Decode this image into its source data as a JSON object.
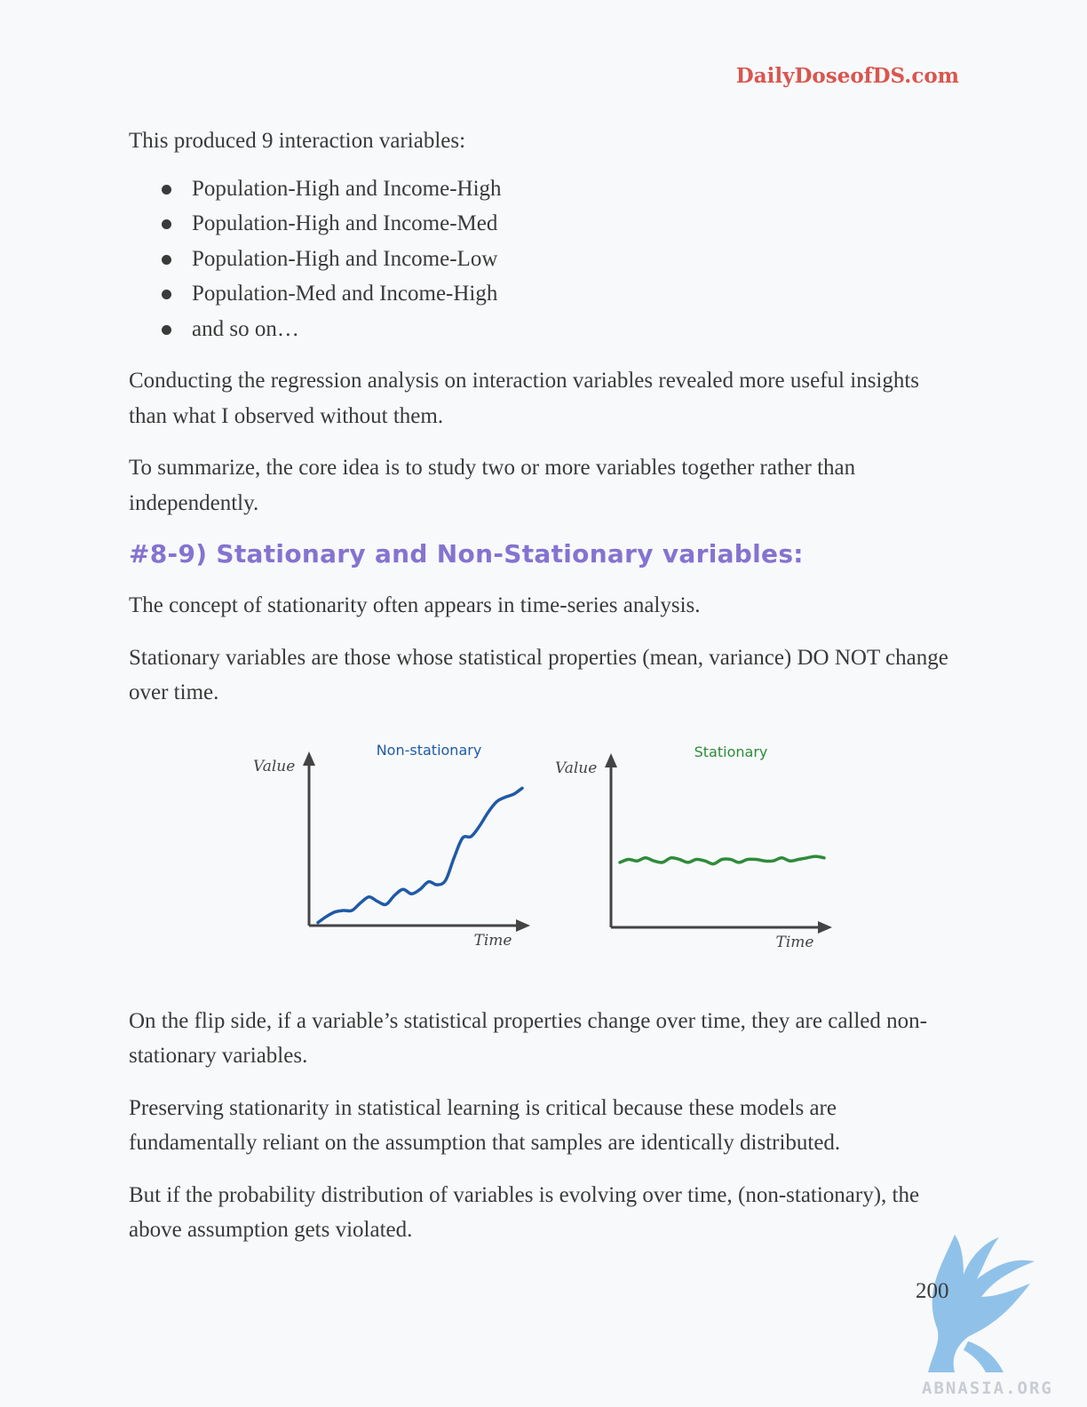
{
  "header": {
    "brand": "DailyDoseofDS.com"
  },
  "intro": "This produced 9 interaction variables:",
  "bullets": [
    "Population-High and Income-High",
    "Population-High and Income-Med",
    "Population-High and Income-Low",
    "Population-Med and Income-High",
    "and so on…"
  ],
  "paragraphs": [
    "Conducting the regression analysis on interaction variables revealed more useful insights than what I observed without them.",
    "To summarize, the core idea is to study two or more variables together rather than independently."
  ],
  "section_heading": "#8-9) Stationary and Non-Stationary variables:",
  "section_paragraphs": [
    "The concept of stationarity often appears in time-series analysis.",
    "Stationary variables are those whose statistical properties (mean, variance) DO NOT change over time."
  ],
  "chart_data": [
    {
      "type": "line",
      "title": "Non-stationary",
      "xlabel": "Time",
      "ylabel": "Value",
      "x": [
        0,
        1,
        2,
        3,
        4,
        5,
        6,
        7,
        8,
        9,
        10,
        11,
        12,
        13,
        14,
        15,
        16,
        17,
        18,
        19,
        20,
        21,
        22,
        23,
        24
      ],
      "series": [
        {
          "values": [
            0.02,
            0.06,
            0.09,
            0.1,
            0.1,
            0.15,
            0.19,
            0.16,
            0.14,
            0.2,
            0.24,
            0.21,
            0.24,
            0.29,
            0.27,
            0.3,
            0.45,
            0.58,
            0.59,
            0.66,
            0.75,
            0.82,
            0.85,
            0.87,
            0.91
          ]
        }
      ],
      "color": "#1f5aa6"
    },
    {
      "type": "line",
      "title": "Stationary",
      "xlabel": "Time",
      "ylabel": "Value",
      "x": [
        0,
        1,
        2,
        3,
        4,
        5,
        6,
        7,
        8,
        9,
        10,
        11,
        12,
        13,
        14,
        15,
        16,
        17,
        18,
        19,
        20,
        21,
        22,
        23,
        24
      ],
      "series": [
        {
          "values": [
            0.43,
            0.45,
            0.44,
            0.46,
            0.44,
            0.43,
            0.46,
            0.45,
            0.43,
            0.45,
            0.44,
            0.42,
            0.45,
            0.45,
            0.43,
            0.45,
            0.45,
            0.44,
            0.44,
            0.46,
            0.44,
            0.45,
            0.46,
            0.47,
            0.46
          ]
        }
      ],
      "color": "#2e8b3a"
    }
  ],
  "after_paragraphs": [
    "On the flip side, if a variable’s statistical properties change over time, they are called non-stationary variables.",
    "Preserving stationarity in statistical learning is critical because these models are fundamentally reliant on the assumption that samples are identically distributed.",
    "But if the probability distribution of variables is evolving over time, (non-stationary), the above assumption gets violated."
  ],
  "page_number": "200",
  "watermark": {
    "text": "ABNASIA.ORG",
    "color": "#7fb9e6"
  }
}
